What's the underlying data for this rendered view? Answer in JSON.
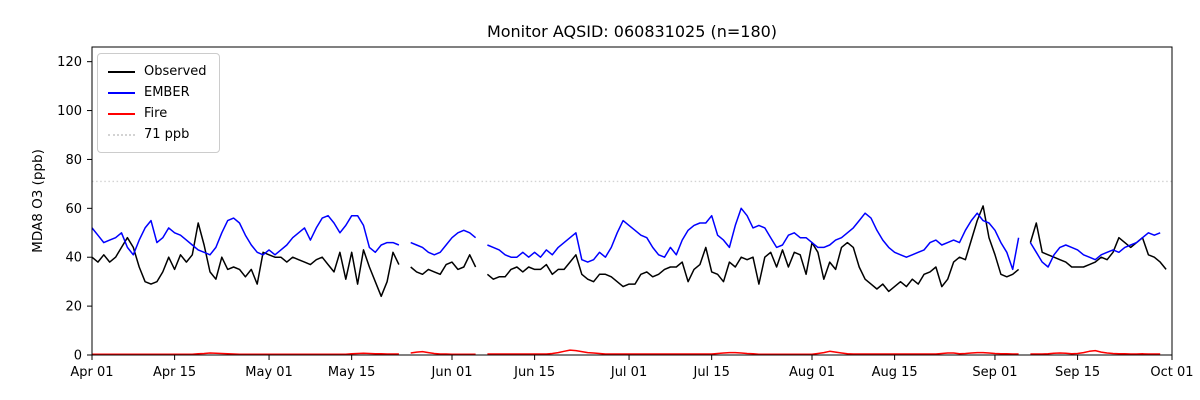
{
  "figure": {
    "title": "Monitor AQSID: 060831025 (n=180)",
    "ylabel": "MDA8 O3 (ppb)",
    "background": "#ffffff",
    "text_color": "#000000",
    "spine_color": "#000000"
  },
  "chart_data": {
    "type": "line",
    "title": "Monitor AQSID: 060831025 (n=180)",
    "xlabel": "",
    "ylabel": "MDA8 O3 (ppb)",
    "ylim": [
      0,
      126
    ],
    "y_ticks": [
      0,
      20,
      40,
      60,
      80,
      100,
      120
    ],
    "grid": false,
    "legend_position": "upper left",
    "x_is_daily_dates": "daily values from Apr 01 to Sep 30; day index 0 = Apr 01; 3 missing days (nulls) so n=180",
    "days_total": 183,
    "x_ticks": [
      {
        "label": "Apr 01",
        "day": 0
      },
      {
        "label": "Apr 15",
        "day": 14
      },
      {
        "label": "May 01",
        "day": 30
      },
      {
        "label": "May 15",
        "day": 44
      },
      {
        "label": "Jun 01",
        "day": 61
      },
      {
        "label": "Jun 15",
        "day": 75
      },
      {
        "label": "Jul 01",
        "day": 91
      },
      {
        "label": "Jul 15",
        "day": 105
      },
      {
        "label": "Aug 01",
        "day": 122
      },
      {
        "label": "Aug 15",
        "day": 136
      },
      {
        "label": "Sep 01",
        "day": 153
      },
      {
        "label": "Sep 15",
        "day": 167
      },
      {
        "label": "Oct 01",
        "day": 183
      }
    ],
    "threshold": {
      "label": "71 ppb",
      "value": 71,
      "color": "#d3d3d3",
      "style": "dotted"
    },
    "series": [
      {
        "name": "Observed",
        "color": "#000000",
        "values": [
          40,
          38,
          41,
          38,
          40,
          44,
          48,
          44,
          36,
          30,
          29,
          30,
          34,
          40,
          35,
          41,
          38,
          41,
          54,
          45,
          34,
          31,
          40,
          35,
          36,
          35,
          32,
          35,
          29,
          42,
          41,
          40,
          40,
          38,
          40,
          39,
          38,
          37,
          39,
          40,
          37,
          34,
          42,
          31,
          42,
          29,
          43,
          36,
          30,
          24,
          30,
          42,
          37,
          null,
          36,
          34,
          33,
          35,
          34,
          33,
          37,
          38,
          35,
          36,
          41,
          36,
          null,
          33,
          31,
          32,
          32,
          35,
          36,
          34,
          36,
          35,
          35,
          37,
          33,
          35,
          35,
          38,
          41,
          33,
          31,
          30,
          33,
          33,
          32,
          30,
          28,
          29,
          29,
          33,
          34,
          32,
          33,
          35,
          36,
          36,
          38,
          30,
          35,
          37,
          44,
          34,
          33,
          30,
          38,
          36,
          40,
          39,
          40,
          29,
          40,
          42,
          36,
          43,
          36,
          42,
          41,
          33,
          46,
          42,
          31,
          38,
          35,
          44,
          46,
          44,
          36,
          31,
          29,
          27,
          29,
          26,
          28,
          30,
          28,
          31,
          29,
          33,
          34,
          36,
          28,
          31,
          38,
          40,
          39,
          47,
          55,
          61,
          48,
          41,
          33,
          32,
          33,
          35,
          null,
          46,
          54,
          42,
          41,
          40,
          39,
          38,
          36,
          36,
          36,
          37,
          38,
          40,
          39,
          42,
          48,
          46,
          44,
          46,
          48,
          41,
          40,
          38,
          35
        ]
      },
      {
        "name": "EMBER",
        "color": "#0000ff",
        "values": [
          52,
          49,
          46,
          47,
          48,
          50,
          44,
          41,
          47,
          52,
          55,
          46,
          48,
          52,
          50,
          49,
          47,
          45,
          43,
          42,
          41,
          44,
          50,
          55,
          56,
          54,
          49,
          45,
          42,
          41,
          43,
          41,
          43,
          45,
          48,
          50,
          52,
          47,
          52,
          56,
          57,
          54,
          50,
          53,
          57,
          57,
          53,
          44,
          42,
          45,
          46,
          46,
          45,
          null,
          46,
          45,
          44,
          42,
          41,
          42,
          45,
          48,
          50,
          51,
          50,
          48,
          null,
          45,
          44,
          43,
          41,
          40,
          40,
          42,
          40,
          42,
          40,
          43,
          41,
          44,
          46,
          48,
          50,
          39,
          38,
          39,
          42,
          40,
          44,
          50,
          55,
          53,
          51,
          49,
          48,
          44,
          41,
          40,
          44,
          41,
          47,
          51,
          53,
          54,
          54,
          57,
          49,
          47,
          44,
          53,
          60,
          57,
          52,
          53,
          52,
          48,
          44,
          45,
          49,
          50,
          48,
          48,
          46,
          44,
          44,
          45,
          47,
          48,
          50,
          52,
          55,
          58,
          56,
          51,
          47,
          44,
          42,
          41,
          40,
          41,
          42,
          43,
          46,
          47,
          45,
          46,
          47,
          46,
          51,
          55,
          58,
          55,
          54,
          51,
          46,
          42,
          35,
          48,
          null,
          46,
          42,
          38,
          36,
          41,
          44,
          45,
          44,
          43,
          41,
          40,
          39,
          41,
          42,
          43,
          42,
          44,
          45,
          46,
          48,
          50,
          49,
          50,
          null
        ]
      },
      {
        "name": "Fire",
        "color": "#ff0000",
        "values": [
          0.3,
          0.3,
          0.3,
          0.3,
          0.3,
          0.3,
          0.3,
          0.3,
          0.3,
          0.3,
          0.3,
          0.3,
          0.3,
          0.3,
          0.3,
          0.3,
          0.3,
          0.3,
          0.5,
          0.6,
          0.8,
          0.7,
          0.6,
          0.5,
          0.4,
          0.3,
          0.3,
          0.3,
          0.3,
          0.3,
          0.3,
          0.3,
          0.3,
          0.3,
          0.3,
          0.3,
          0.3,
          0.3,
          0.3,
          0.3,
          0.3,
          0.3,
          0.3,
          0.3,
          0.5,
          0.6,
          0.7,
          0.6,
          0.5,
          0.5,
          0.4,
          0.4,
          0.4,
          null,
          0.8,
          1.2,
          1.4,
          1.0,
          0.6,
          0.4,
          0.4,
          0.3,
          0.3,
          0.3,
          0.3,
          0.3,
          null,
          0.4,
          0.4,
          0.4,
          0.4,
          0.4,
          0.4,
          0.4,
          0.4,
          0.4,
          0.4,
          0.4,
          0.6,
          1.0,
          1.5,
          2.0,
          1.8,
          1.4,
          1.0,
          0.8,
          0.6,
          0.4,
          0.4,
          0.4,
          0.4,
          0.4,
          0.4,
          0.4,
          0.4,
          0.4,
          0.4,
          0.4,
          0.4,
          0.4,
          0.4,
          0.4,
          0.4,
          0.4,
          0.4,
          0.4,
          0.6,
          0.8,
          1.0,
          1.0,
          0.8,
          0.6,
          0.5,
          0.3,
          0.3,
          0.3,
          0.3,
          0.3,
          0.3,
          0.3,
          0.3,
          0.3,
          0.3,
          0.6,
          1.0,
          1.5,
          1.2,
          0.8,
          0.5,
          0.4,
          0.4,
          0.4,
          0.4,
          0.4,
          0.4,
          0.4,
          0.4,
          0.4,
          0.4,
          0.4,
          0.4,
          0.4,
          0.4,
          0.4,
          0.6,
          0.8,
          0.8,
          0.5,
          0.6,
          0.8,
          1.0,
          1.0,
          0.8,
          0.6,
          0.5,
          0.5,
          0.4,
          0.4,
          null,
          0.4,
          0.4,
          0.4,
          0.5,
          0.7,
          0.8,
          0.7,
          0.5,
          0.6,
          1.0,
          1.5,
          1.8,
          1.2,
          0.8,
          0.6,
          0.5,
          0.5,
          0.4,
          0.4,
          0.5,
          0.4,
          0.4,
          0.4,
          null
        ]
      }
    ]
  }
}
